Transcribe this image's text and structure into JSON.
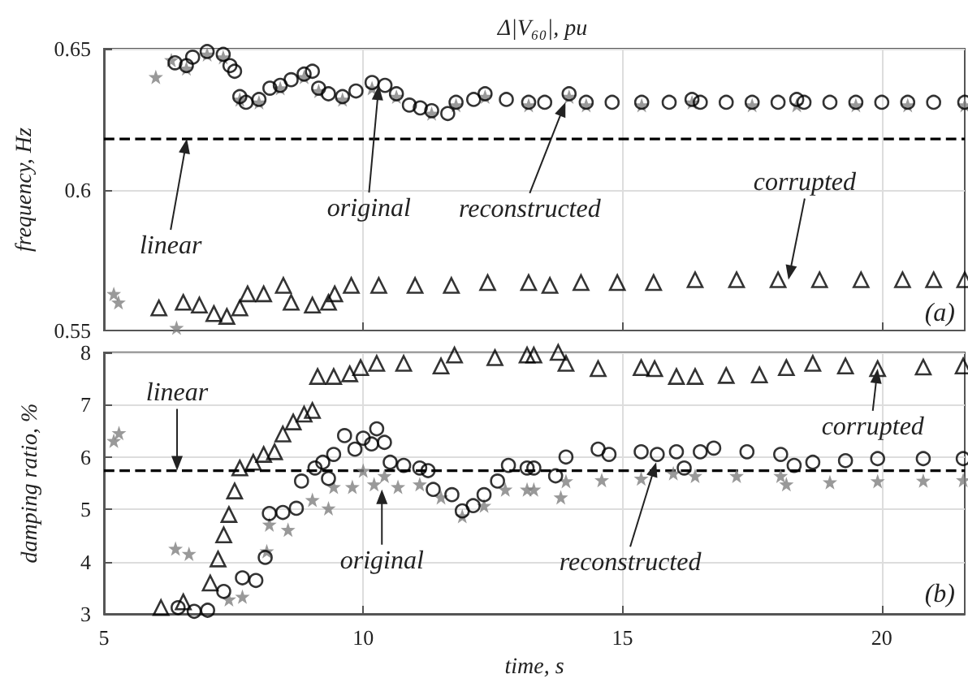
{
  "chart_data": [
    {
      "type": "scatter",
      "title": "Δ|V₆₀|, pu",
      "ylabel": "frequency, Hz",
      "xlim": [
        5,
        21.6
      ],
      "ylim": [
        0.55,
        0.65
      ],
      "yticks": [
        0.55,
        0.6,
        0.65
      ],
      "xticks": [
        5,
        10,
        15,
        20
      ],
      "tick_labels": "y",
      "grid": true,
      "ref_lines": [
        {
          "axis": "y",
          "value": 0.618,
          "label": "linear",
          "color": "#000000",
          "line_style": "dashed"
        }
      ],
      "annotations": [
        {
          "text": "original",
          "x": 10.3,
          "y": 0.637
        },
        {
          "text": "reconstructed",
          "x": 13.9,
          "y": 0.631
        },
        {
          "text": "corrupted",
          "x": 18.2,
          "y": 0.568
        },
        "(a)"
      ],
      "series": [
        {
          "color": "#808080",
          "marker": "star",
          "x": [
            5.19,
            5.28,
            6.0,
            6.3,
            6.4,
            6.59,
            6.99,
            7.3,
            7.62,
            7.99,
            8.4,
            8.86,
            9.14,
            9.6,
            10.17,
            10.64,
            11.32,
            11.79,
            12.35,
            13.19,
            13.97,
            14.3,
            15.37,
            16.34,
            17.5,
            18.36,
            19.5,
            20.5,
            21.6
          ],
          "values": [
            0.563,
            0.56,
            0.64,
            0.646,
            0.551,
            0.643,
            0.648,
            0.647,
            0.632,
            0.631,
            0.636,
            0.64,
            0.635,
            0.632,
            0.636,
            0.633,
            0.627,
            0.63,
            0.633,
            0.63,
            0.633,
            0.63,
            0.63,
            0.631,
            0.63,
            0.63,
            0.63,
            0.63,
            0.63
          ]
        },
        {
          "color": "#000000",
          "marker": "circle",
          "x": [
            6.37,
            6.59,
            6.71,
            6.99,
            7.3,
            7.43,
            7.52,
            7.62,
            7.74,
            7.99,
            8.2,
            8.4,
            8.61,
            8.86,
            9.02,
            9.14,
            9.33,
            9.6,
            9.86,
            10.17,
            10.42,
            10.64,
            10.89,
            11.1,
            11.32,
            11.63,
            11.79,
            12.13,
            12.35,
            12.76,
            13.19,
            13.5,
            13.97,
            14.3,
            14.8,
            15.37,
            15.9,
            16.34,
            16.5,
            17.0,
            17.5,
            18.0,
            18.36,
            18.5,
            19.0,
            19.5,
            20.0,
            20.5,
            21.0,
            21.6
          ],
          "values": [
            0.645,
            0.644,
            0.647,
            0.649,
            0.648,
            0.644,
            0.642,
            0.633,
            0.631,
            0.632,
            0.636,
            0.637,
            0.639,
            0.641,
            0.642,
            0.636,
            0.634,
            0.633,
            0.635,
            0.638,
            0.637,
            0.634,
            0.63,
            0.629,
            0.628,
            0.627,
            0.631,
            0.632,
            0.634,
            0.632,
            0.631,
            0.631,
            0.634,
            0.631,
            0.631,
            0.631,
            0.631,
            0.632,
            0.631,
            0.631,
            0.631,
            0.631,
            0.632,
            0.631,
            0.631,
            0.631,
            0.631,
            0.631,
            0.631,
            0.631
          ]
        },
        {
          "color": "#000000",
          "marker": "triangle",
          "x": [
            6.06,
            6.53,
            6.84,
            7.12,
            7.37,
            7.62,
            7.77,
            8.08,
            8.46,
            8.61,
            9.02,
            9.33,
            9.45,
            9.77,
            10.3,
            11.0,
            11.7,
            12.4,
            13.19,
            13.6,
            14.2,
            14.9,
            15.6,
            16.4,
            17.2,
            18.0,
            18.8,
            19.6,
            20.4,
            21.0,
            21.6
          ],
          "values": [
            0.558,
            0.56,
            0.559,
            0.556,
            0.555,
            0.558,
            0.563,
            0.563,
            0.566,
            0.56,
            0.559,
            0.56,
            0.563,
            0.566,
            0.566,
            0.566,
            0.566,
            0.567,
            0.567,
            0.566,
            0.567,
            0.567,
            0.567,
            0.568,
            0.568,
            0.568,
            0.568,
            0.568,
            0.568,
            0.568,
            0.568
          ]
        }
      ]
    },
    {
      "type": "scatter",
      "xlabel": "time, s",
      "ylabel": "damping ratio, %",
      "xlim": [
        5,
        21.6
      ],
      "ylim": [
        3,
        8
      ],
      "xticks": [
        5,
        10,
        15,
        20
      ],
      "yticks": [
        3,
        4,
        5,
        6,
        7,
        8
      ],
      "grid": true,
      "ref_lines": [
        {
          "axis": "y",
          "value": 5.74,
          "label": "linear",
          "color": "#000000",
          "line_style": "dashed"
        }
      ],
      "annotations": [
        {
          "text": "original",
          "x": 10.36,
          "y": 5.38
        },
        {
          "text": "reconstructed",
          "x": 15.65,
          "y": 5.9
        },
        {
          "text": "corrupted",
          "x": 19.92,
          "y": 7.69
        },
        "(b)"
      ],
      "series": [
        {
          "color": "#808080",
          "marker": "star",
          "x": [
            5.19,
            5.29,
            6.38,
            6.64,
            7.41,
            7.67,
            8.14,
            8.19,
            8.55,
            9.02,
            9.33,
            9.43,
            9.79,
            10.0,
            10.21,
            10.41,
            10.67,
            11.09,
            11.5,
            11.91,
            12.33,
            12.74,
            13.16,
            13.29,
            13.81,
            13.91,
            14.6,
            15.36,
            15.98,
            16.4,
            17.2,
            18.05,
            18.16,
            19.0,
            19.92,
            20.8,
            21.57
          ],
          "values": [
            6.31,
            6.46,
            4.25,
            4.15,
            3.28,
            3.33,
            4.2,
            4.71,
            4.61,
            5.18,
            5.02,
            5.43,
            5.43,
            5.74,
            5.48,
            5.64,
            5.43,
            5.48,
            5.23,
            4.87,
            5.07,
            5.38,
            5.38,
            5.38,
            5.23,
            5.54,
            5.56,
            5.59,
            5.69,
            5.64,
            5.64,
            5.64,
            5.48,
            5.52,
            5.54,
            5.55,
            5.56
          ]
        },
        {
          "color": "#000000",
          "marker": "circle",
          "x": [
            6.43,
            6.74,
            7.0,
            7.31,
            7.67,
            7.93,
            8.11,
            8.19,
            8.45,
            8.71,
            8.81,
            9.07,
            9.22,
            9.33,
            9.43,
            9.64,
            9.84,
            10.0,
            10.16,
            10.26,
            10.41,
            10.52,
            10.78,
            11.09,
            11.25,
            11.35,
            11.71,
            11.91,
            12.12,
            12.33,
            12.59,
            12.8,
            13.16,
            13.29,
            13.71,
            13.91,
            14.53,
            14.74,
            15.36,
            15.67,
            16.04,
            16.19,
            16.5,
            16.76,
            17.4,
            18.05,
            18.31,
            18.67,
            19.3,
            19.92,
            20.8,
            21.57
          ],
          "values": [
            3.12,
            3.05,
            3.07,
            3.43,
            3.69,
            3.64,
            4.08,
            4.92,
            4.94,
            5.02,
            5.54,
            5.79,
            5.9,
            5.59,
            6.05,
            6.41,
            6.15,
            6.36,
            6.25,
            6.54,
            6.28,
            5.9,
            5.84,
            5.79,
            5.74,
            5.38,
            5.28,
            4.97,
            5.07,
            5.28,
            5.54,
            5.84,
            5.79,
            5.79,
            5.64,
            6.0,
            6.15,
            6.05,
            6.1,
            6.05,
            6.1,
            5.79,
            6.1,
            6.17,
            6.1,
            6.05,
            5.84,
            5.9,
            5.93,
            5.97,
            5.97,
            5.97
          ]
        },
        {
          "color": "#000000",
          "marker": "triangle",
          "x": [
            6.1,
            6.53,
            7.05,
            7.2,
            7.31,
            7.41,
            7.52,
            7.62,
            7.88,
            8.08,
            8.29,
            8.45,
            8.65,
            8.86,
            9.02,
            9.12,
            9.43,
            9.74,
            9.95,
            10.26,
            10.78,
            11.5,
            11.76,
            12.54,
            13.16,
            13.29,
            13.76,
            13.91,
            14.53,
            15.36,
            15.62,
            16.04,
            16.4,
            17.0,
            17.64,
            18.16,
            18.67,
            19.3,
            19.92,
            20.8,
            21.57
          ],
          "values": [
            3.12,
            3.23,
            3.59,
            4.05,
            4.51,
            4.9,
            5.35,
            5.79,
            5.9,
            6.05,
            6.1,
            6.44,
            6.67,
            6.82,
            6.89,
            7.54,
            7.54,
            7.59,
            7.71,
            7.79,
            7.79,
            7.74,
            7.95,
            7.9,
            7.95,
            7.95,
            8.0,
            7.79,
            7.69,
            7.71,
            7.69,
            7.54,
            7.54,
            7.56,
            7.57,
            7.71,
            7.79,
            7.74,
            7.69,
            7.72,
            7.74
          ]
        }
      ]
    }
  ]
}
